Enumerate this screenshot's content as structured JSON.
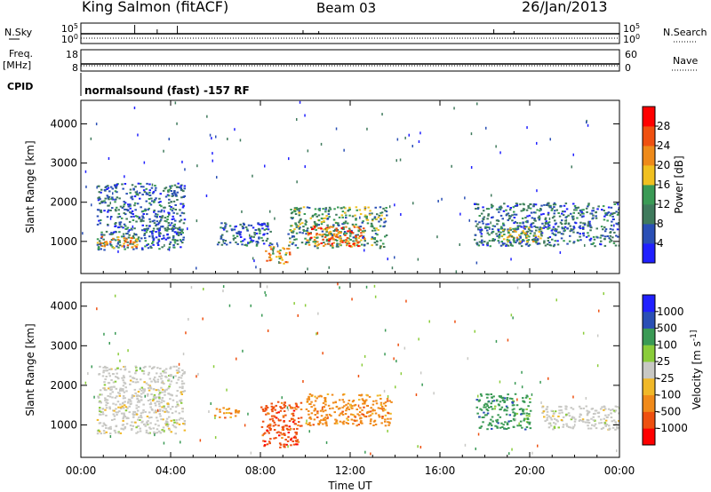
{
  "header": {
    "station": "King Salmon (fitACF)",
    "beam": "Beam 03",
    "date": "26/Jan/2013"
  },
  "strips": {
    "nsky": {
      "label": "N.Sky",
      "ticks": [
        "10^5",
        "10^0"
      ]
    },
    "nsearch": {
      "label": "N.Search",
      "ticks": [
        "10^5",
        "10^0"
      ]
    },
    "freq": {
      "label_1": "Freq.",
      "label_2": "[MHz]",
      "ticks": [
        "18",
        "8"
      ]
    },
    "nave": {
      "label": "Nave",
      "ticks": [
        "60",
        "0"
      ]
    },
    "cpid": {
      "label": "CPID",
      "value": "normalsound (fast) -157 RF"
    }
  },
  "colors": {
    "power": [
      "#2020ff",
      "#2a4fb5",
      "#3f7a5c",
      "#3a9a55",
      "#f0c020",
      "#ee8a1a",
      "#ef5010",
      "#ff0000"
    ],
    "velocity": [
      "#ff0000",
      "#ee5010",
      "#f08a1a",
      "#f0b828",
      "#c8c8c4",
      "#8acc3a",
      "#3a9a55",
      "#2a4fb5",
      "#2020ff"
    ]
  },
  "chart_data": [
    {
      "type": "heatmap",
      "xlabel": "",
      "ylabel": "Slant Range [km]",
      "x_ticks": [
        "00:00",
        "04:00",
        "08:00",
        "12:00",
        "16:00",
        "20:00",
        "00:00"
      ],
      "x_range_hours": [
        0,
        24
      ],
      "y_ticks": [
        1000,
        2000,
        3000,
        4000
      ],
      "ylim": [
        180,
        4600
      ],
      "colorbar": {
        "label": "Power [dB]",
        "ticks": [
          4,
          8,
          12,
          16,
          20,
          24,
          28
        ],
        "range": [
          0,
          32
        ]
      },
      "regions": [
        {
          "time": [
            0.7,
            4.6
          ],
          "range": [
            800,
            2500
          ],
          "level": 10
        },
        {
          "time": [
            0.7,
            2.5
          ],
          "range": [
            850,
            1150
          ],
          "level": 22
        },
        {
          "time": [
            6.0,
            8.5
          ],
          "range": [
            900,
            1500
          ],
          "level": 8
        },
        {
          "time": [
            8.2,
            9.3
          ],
          "range": [
            450,
            900
          ],
          "level": 20
        },
        {
          "time": [
            9.2,
            13.6
          ],
          "range": [
            850,
            1900
          ],
          "level": 12
        },
        {
          "time": [
            10.0,
            12.6
          ],
          "range": [
            900,
            1400
          ],
          "level": 26
        },
        {
          "time": [
            17.5,
            24.0
          ],
          "range": [
            900,
            2000
          ],
          "level": 8
        },
        {
          "time": [
            18.5,
            20.5
          ],
          "range": [
            1000,
            1400
          ],
          "level": 18
        }
      ]
    },
    {
      "type": "heatmap",
      "xlabel": "Time UT",
      "ylabel": "Slant Range [km]",
      "x_ticks": [
        "00:00",
        "04:00",
        "08:00",
        "12:00",
        "16:00",
        "20:00",
        "00:00"
      ],
      "x_range_hours": [
        0,
        24
      ],
      "y_ticks": [
        1000,
        2000,
        3000,
        4000
      ],
      "ylim": [
        180,
        4600
      ],
      "colorbar": {
        "label": "Velocity [m s^-1]",
        "ticks": [
          -1000,
          -500,
          -100,
          -25,
          25,
          100,
          500,
          1000
        ]
      },
      "regions": [
        {
          "time": [
            0.7,
            4.6
          ],
          "range": [
            800,
            2500
          ],
          "velocity": 0
        },
        {
          "time": [
            5.9,
            7.0
          ],
          "range": [
            1200,
            1450
          ],
          "velocity": -400
        },
        {
          "time": [
            8.0,
            9.8
          ],
          "range": [
            450,
            1600
          ],
          "velocity": -600
        },
        {
          "time": [
            10.0,
            13.8
          ],
          "range": [
            1000,
            1800
          ],
          "velocity": -150
        },
        {
          "time": [
            17.6,
            20.0
          ],
          "range": [
            900,
            1800
          ],
          "velocity": 150
        },
        {
          "time": [
            20.5,
            24.0
          ],
          "range": [
            900,
            1500
          ],
          "velocity": 0
        }
      ]
    }
  ]
}
